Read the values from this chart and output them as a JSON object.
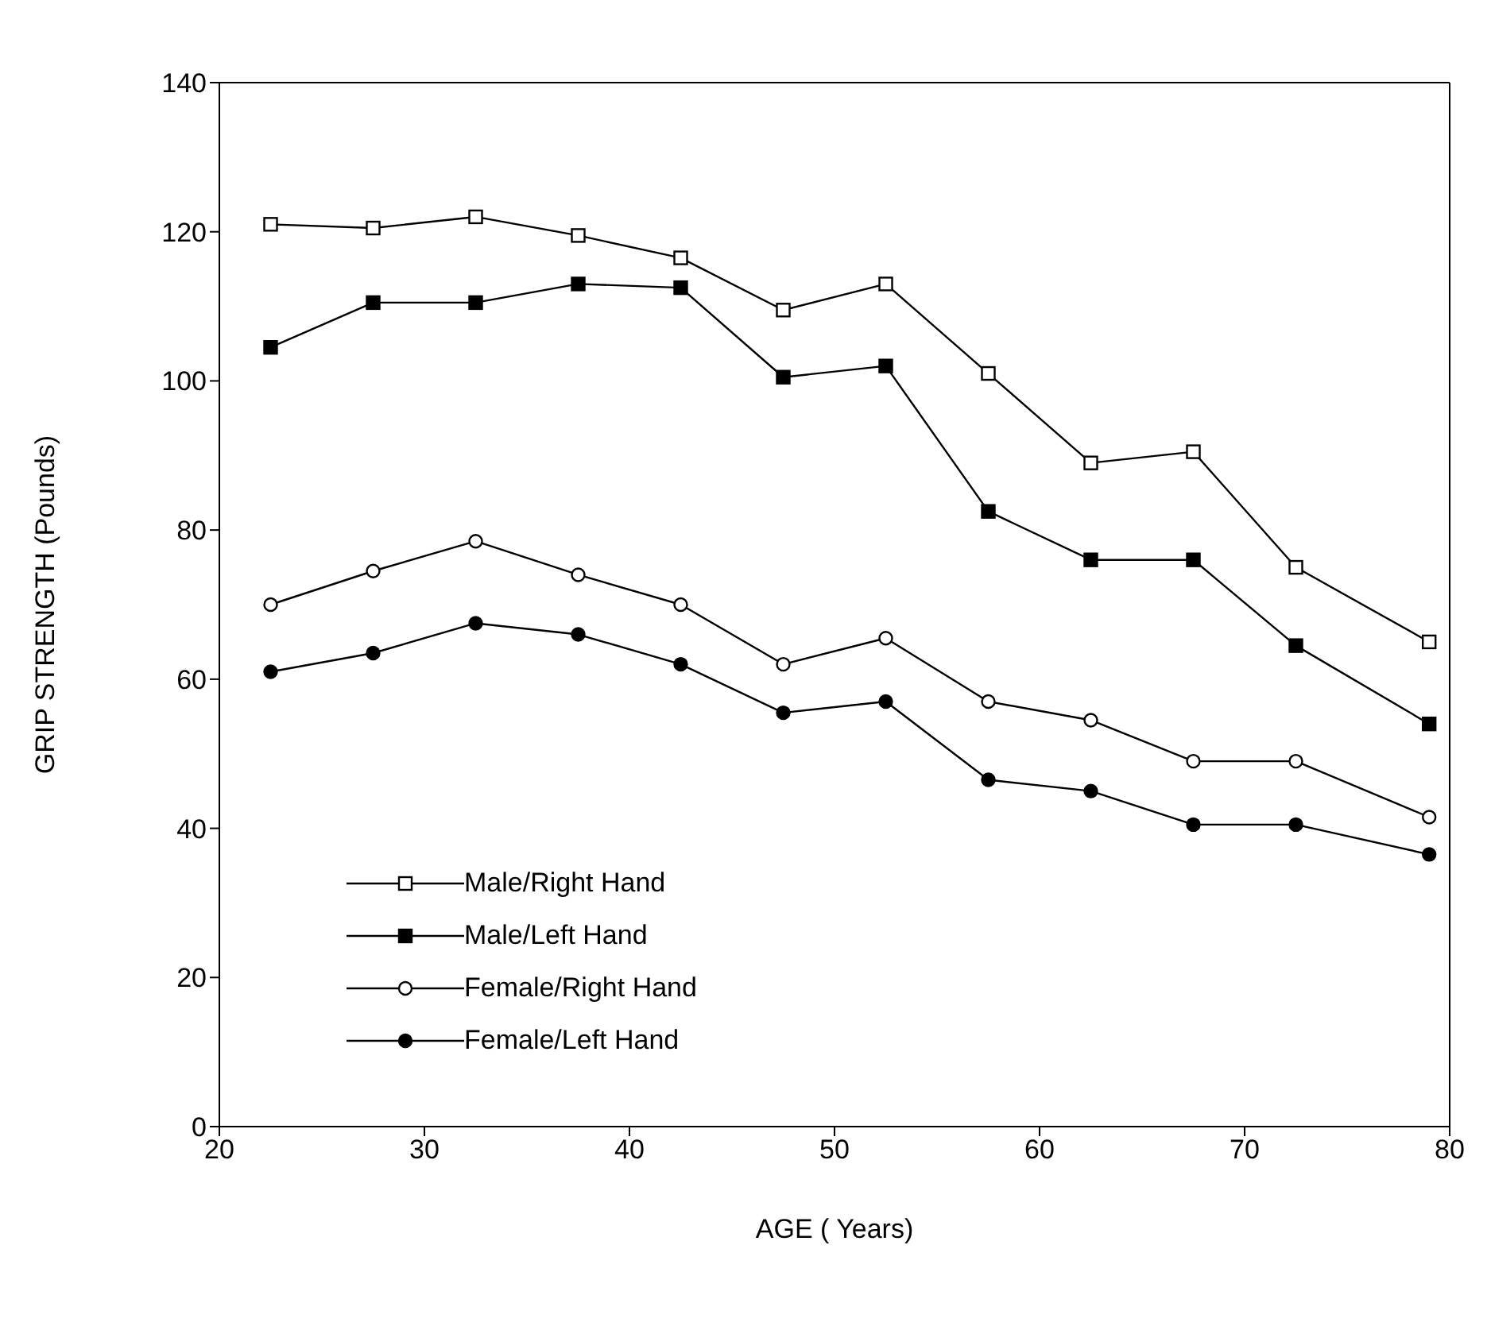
{
  "chart_data": {
    "type": "line",
    "xlabel": "AGE ( Years)",
    "ylabel": "GRIP STRENGTH (Pounds)",
    "x": [
      22.5,
      27.5,
      32.5,
      37.5,
      42.5,
      47.5,
      52.5,
      57.5,
      62.5,
      67.5,
      72.5,
      79
    ],
    "xlim": [
      20,
      80
    ],
    "xticks": [
      20,
      30,
      40,
      50,
      60,
      70,
      80
    ],
    "ylim": [
      0,
      140
    ],
    "yticks": [
      0,
      20,
      40,
      60,
      80,
      100,
      120,
      140
    ],
    "grid": false,
    "legend": "bottom left",
    "line_style": "solid",
    "series": [
      {
        "name": "Male/Right Hand",
        "color": "#000000",
        "marker": "square",
        "values": [
          121,
          120.5,
          122,
          119.5,
          116.5,
          109.5,
          113,
          101,
          89,
          90.5,
          75,
          65
        ]
      },
      {
        "name": "Male/Left Hand",
        "color": "#000000",
        "marker": "square",
        "values": [
          104.5,
          110.5,
          110.5,
          113,
          112.5,
          100.5,
          102,
          82.5,
          76,
          76,
          64.5,
          54
        ]
      },
      {
        "name": "Female/Right Hand",
        "color": "#000000",
        "marker": "circle",
        "values": [
          70,
          74.5,
          78.5,
          74,
          70,
          62,
          65.5,
          57,
          54.5,
          49,
          49,
          41.5
        ]
      },
      {
        "name": "Female/Left Hand",
        "color": "#000000",
        "marker": "circle",
        "values": [
          61,
          63.5,
          67.5,
          66,
          62,
          55.5,
          57,
          46.5,
          45,
          40.5,
          40.5,
          36.5
        ]
      }
    ]
  }
}
